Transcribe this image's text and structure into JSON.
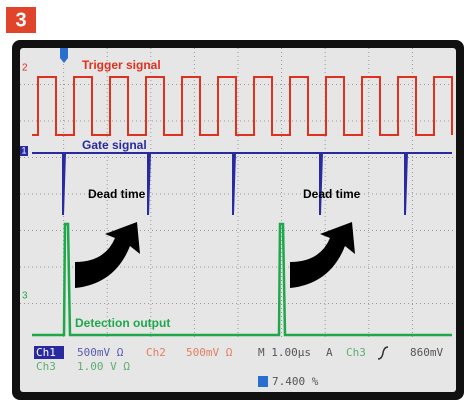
{
  "badge": "3",
  "labels": {
    "trigger": "Trigger signal",
    "gate": "Gate signal",
    "dead_time_1": "Dead time",
    "dead_time_2": "Dead time",
    "detection": "Detection output"
  },
  "markers": [
    "2",
    "1",
    "3"
  ],
  "status": {
    "ch1": "Ch1",
    "ch1_scale": "500mV Ω",
    "ch2": "Ch2",
    "ch2_scale": "500mV Ω",
    "timebase": "M 1.00µs",
    "trigger_mode": "A",
    "trigger_source": "Ch3",
    "trigger_level": "860mV",
    "ch3": "Ch3",
    "ch3_scale": "1.00 V Ω",
    "percent": "7.400 %"
  }
}
